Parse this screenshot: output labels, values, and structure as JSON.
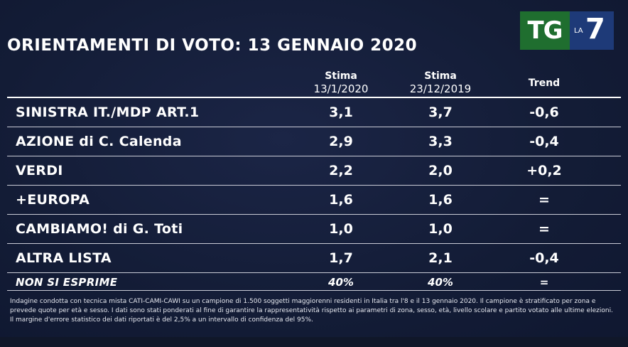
{
  "title": "ORIENTAMENTI DI VOTO: 13 GENNAIO 2020",
  "logo": {
    "tg": "TG",
    "la": "LA",
    "seven": "7"
  },
  "headers": [
    {
      "line1": "Stima",
      "line2": "13/1/2020"
    },
    {
      "line1": "Stima",
      "line2": "23/12/2019"
    },
    {
      "line1": "Trend",
      "line2": ""
    }
  ],
  "chart_data": {
    "type": "table",
    "title": "ORIENTAMENTI DI VOTO: 13 GENNAIO 2020",
    "columns": [
      "Stima 13/1/2020",
      "Stima 23/12/2019",
      "Trend"
    ],
    "rows": [
      {
        "label": "SINISTRA IT./MDP ART.1",
        "values": [
          "3,1",
          "3,7",
          "-0,6"
        ]
      },
      {
        "label": "AZIONE di C. Calenda",
        "values": [
          "2,9",
          "3,3",
          "-0,4"
        ]
      },
      {
        "label": "VERDI",
        "values": [
          "2,2",
          "2,0",
          "+0,2"
        ]
      },
      {
        "label": "+EUROPA",
        "values": [
          "1,6",
          "1,6",
          "="
        ]
      },
      {
        "label": "CAMBIAMO! di G. Toti",
        "values": [
          "1,0",
          "1,0",
          "="
        ]
      },
      {
        "label": "ALTRA LISTA",
        "values": [
          "1,7",
          "2,1",
          "-0,4"
        ]
      }
    ],
    "summary_row": {
      "label": "NON SI ESPRIME",
      "values": [
        "40%",
        "40%",
        "="
      ]
    }
  },
  "footnote": "Indagine condotta con tecnica mista CATI-CAMI-CAWI su un campione di 1.500 soggetti maggiorenni residenti in Italia tra l'8 e il 13 gennaio 2020. Il campione è stratificato per zona e prevede quote per età e sesso. I dati sono stati ponderati al fine di garantire la rappresentatività rispetto ai parametri di zona, sesso, età, livello scolare e partito votato alle ultime elezioni. Il margine d'errore statistico dei dati riportati è del 2,5% a un intervallo di confidenza del 95%.",
  "colors": {
    "background": "#131c36",
    "text": "#ffffff",
    "logo_green": "#1f6e2f",
    "logo_blue": "#1e3a78"
  }
}
